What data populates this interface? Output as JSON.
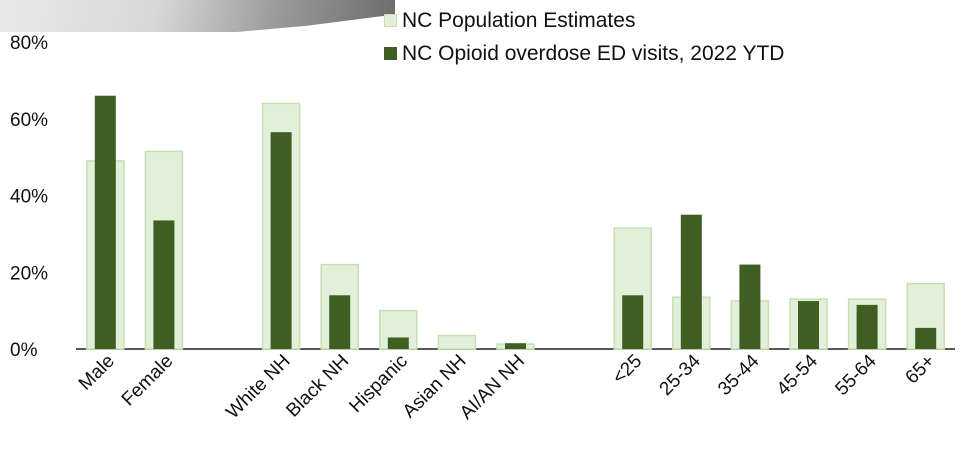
{
  "colors": {
    "population": "#e2efda",
    "population_border": "#c6e0b4",
    "ed_visits": "#3f5f22",
    "axis": "#222222"
  },
  "chart_data": {
    "type": "bar",
    "categories": [
      "Male",
      "Female",
      "",
      "White NH",
      "Black NH",
      "Hispanic",
      "Asian NH",
      "AI/AN NH",
      "",
      "<25",
      "25-34",
      "35-44",
      "45-54",
      "55-64",
      "65+"
    ],
    "series": [
      {
        "name": "NC Population Estimates",
        "values": [
          49,
          51.5,
          null,
          64,
          22,
          10,
          3.5,
          1.3,
          null,
          31.5,
          13.5,
          12.5,
          13,
          13,
          17
        ]
      },
      {
        "name": "NC Opioid overdose ED visits, 2022 YTD",
        "values": [
          66,
          33.5,
          null,
          56.5,
          14,
          3,
          0,
          1.5,
          null,
          14,
          35,
          22,
          12.5,
          11.5,
          5.5
        ]
      }
    ],
    "ylim": [
      0,
      80
    ],
    "yticks": [
      "0%",
      "20%",
      "40%",
      "60%",
      "80%"
    ],
    "ytick_values": [
      0,
      20,
      40,
      60,
      80
    ],
    "grid": false,
    "legend": "top-center"
  }
}
